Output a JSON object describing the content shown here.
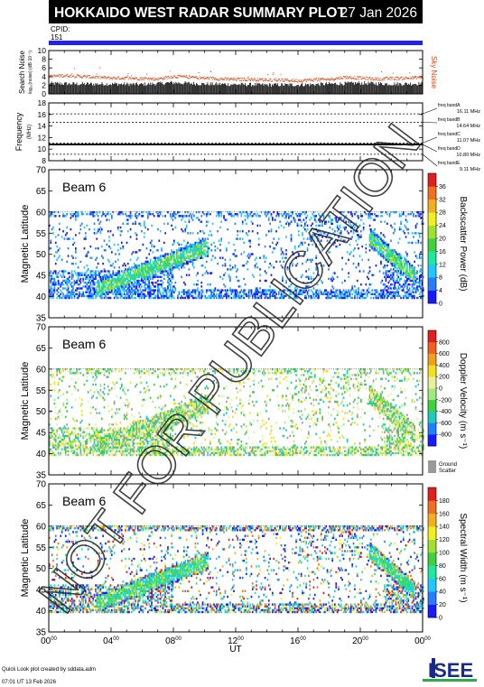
{
  "header": {
    "title": "HOKKAIDO WEST RADAR SUMMARY PLOT",
    "date": "27 Jan 2026",
    "cpid_label": "CPID:",
    "cpid_value": "151"
  },
  "colors": {
    "header_bg": "#000000",
    "header_text": "#ffffff",
    "cpid_bar": "#2222ee",
    "sky_noise": "#dd4411",
    "search_noise": "#000000",
    "ground_scatter": "#999999"
  },
  "footer": {
    "credit": "Quick Look plot created by sddata.adm",
    "timestamp": "07:01 UT 13 Feb 2026",
    "logo": "ISEE",
    "watermark": "NOT FOR PUBLICATION"
  },
  "x_axis": {
    "label": "UT",
    "ticks": [
      {
        "h": "00",
        "m": "00",
        "v": 0
      },
      {
        "h": "04",
        "m": "00",
        "v": 4
      },
      {
        "h": "08",
        "m": "00",
        "v": 8
      },
      {
        "h": "12",
        "m": "00",
        "v": 12
      },
      {
        "h": "16",
        "m": "00",
        "v": 16
      },
      {
        "h": "20",
        "m": "00",
        "v": 20
      },
      {
        "h": "00",
        "m": "00",
        "v": 24
      }
    ],
    "xlim": [
      0,
      24
    ]
  },
  "chart_data": [
    {
      "id": "noise",
      "type": "line",
      "ylabel": "Search Noise",
      "ylabel_sub": "log₁₀(noise) (dB·10⁻¹)",
      "right_label": "Sky Noise",
      "ylim": [
        0,
        10
      ],
      "yticks": [
        0,
        2,
        4,
        6,
        8,
        10
      ],
      "series": [
        {
          "name": "Sky Noise",
          "role": "sky",
          "x": [
            0,
            1,
            2,
            3,
            4,
            5,
            6,
            7,
            8,
            9,
            10,
            11,
            12,
            13,
            14,
            15,
            16,
            17,
            18,
            19,
            20,
            21,
            22,
            23,
            24
          ],
          "values": [
            4.0,
            4.2,
            4.0,
            3.8,
            3.6,
            3.6,
            3.5,
            3.4,
            4.0,
            3.8,
            3.6,
            3.4,
            3.3,
            3.3,
            3.2,
            3.1,
            3.0,
            3.2,
            3.3,
            3.8,
            3.6,
            3.4,
            3.5,
            3.6,
            3.8
          ]
        },
        {
          "name": "Search Noise",
          "role": "search",
          "x": [
            0,
            2,
            4,
            6,
            8,
            10,
            12,
            14,
            16,
            18,
            20,
            22,
            24
          ],
          "values": [
            2.4,
            2.3,
            2.3,
            2.2,
            2.6,
            2.3,
            2.2,
            2.1,
            2.1,
            2.3,
            2.5,
            2.3,
            2.4
          ]
        }
      ]
    },
    {
      "id": "frequency",
      "type": "line",
      "ylabel": "Frequency",
      "ylabel_sub": "(MHz)",
      "ylim": [
        8,
        18
      ],
      "yticks": [
        8,
        10,
        12,
        14,
        16,
        18
      ],
      "bands": [
        {
          "label": "freq bandA",
          "value_label": "16.11 MHz",
          "value": 16.11
        },
        {
          "label": "freq bandB",
          "value_label": "14.64 MHz",
          "value": 14.64
        },
        {
          "label": "freq bandC",
          "value_label": "11.07 MHz",
          "value": 11.07
        },
        {
          "label": "freq bandD",
          "value_label": "10.80 MHz",
          "value": 10.8
        },
        {
          "label": "freq bandE",
          "value_label": "9.11 MHz",
          "value": 9.11
        }
      ]
    },
    {
      "id": "power",
      "type": "heatmap",
      "beam": "Beam  6",
      "ylabel": "Magnetic Latitude",
      "ylim": [
        35,
        70
      ],
      "yticks": [
        35,
        40,
        45,
        50,
        55,
        60,
        65,
        70
      ],
      "colorbar": {
        "label": "Backscatter Power (dB)",
        "ticks": [
          0,
          4,
          8,
          12,
          16,
          20,
          24,
          28,
          32,
          36
        ],
        "range": [
          0,
          40
        ],
        "colors": [
          "#1a1aff",
          "#2a7cff",
          "#20c8ff",
          "#20e8a0",
          "#40d040",
          "#a0e030",
          "#f0f020",
          "#f0b020",
          "#f07020",
          "#e02020"
        ]
      },
      "fov": [
        39.5,
        60
      ]
    },
    {
      "id": "velocity",
      "type": "heatmap",
      "beam": "Beam  6",
      "ylabel": "Magnetic Latitude",
      "ylim": [
        35,
        70
      ],
      "yticks": [
        35,
        40,
        45,
        50,
        55,
        60,
        65,
        70
      ],
      "colorbar": {
        "label": "Doppler Velocity (m s⁻¹)",
        "ticks": [
          800,
          600,
          400,
          200,
          0,
          -200,
          -400,
          -600,
          -800
        ],
        "range": [
          -1000,
          1000
        ],
        "colors": [
          "#e02020",
          "#f06020",
          "#f0a020",
          "#f0e020",
          "#e8f0a0",
          "#a0e880",
          "#40d040",
          "#20c8c0",
          "#2080ff",
          "#1a1aff"
        ]
      },
      "ground_scatter_label": "Ground",
      "ground_scatter_label2": "Scatter",
      "fov": [
        39.5,
        60
      ]
    },
    {
      "id": "width",
      "type": "heatmap",
      "beam": "Beam  6",
      "ylabel": "Magnetic Latitude",
      "ylim": [
        35,
        70
      ],
      "yticks": [
        35,
        40,
        45,
        50,
        55,
        60,
        65,
        70
      ],
      "colorbar": {
        "label": "Spectral Width (m s⁻¹)",
        "ticks": [
          0,
          20,
          40,
          60,
          80,
          100,
          120,
          140,
          160,
          180
        ],
        "range": [
          0,
          200
        ],
        "colors": [
          "#1a1aff",
          "#2a7cff",
          "#20c8ff",
          "#20e8a0",
          "#40d040",
          "#a0e030",
          "#f0f020",
          "#f0b020",
          "#f07020",
          "#e02020"
        ]
      },
      "fov": [
        39.5,
        60
      ]
    }
  ]
}
